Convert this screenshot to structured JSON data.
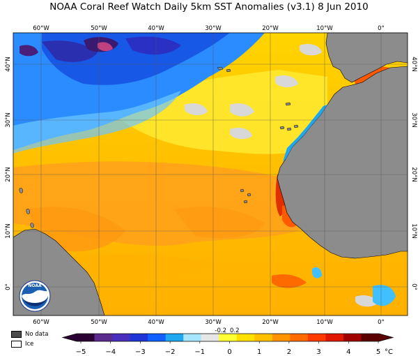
{
  "title": "NOAA Coral Reef Watch Daily 5km SST Anomalies  (v3.1)   8 Jun 2010",
  "map": {
    "lon_labels": [
      "60°W",
      "50°W",
      "40°W",
      "30°W",
      "20°W",
      "10°W",
      "0°"
    ],
    "lat_labels": [
      "40°N",
      "30°N",
      "20°N",
      "10°N",
      "0°"
    ],
    "land_color": "#8c8c8c",
    "nodata_color": "#d8d8d8"
  },
  "logo": {
    "text": "NOAA"
  },
  "legend": {
    "nodata_label": "No data",
    "ice_label": "Ice",
    "nodata_color": "#4d4d4d",
    "ice_color": "#ffffff"
  },
  "colorbar": {
    "unit": "°C",
    "tick_labels": [
      "−5",
      "−4",
      "−3",
      "−2",
      "−1",
      "0",
      "1",
      "2",
      "3",
      "4",
      "5"
    ],
    "small_labels": [
      "-0.2",
      "0.2"
    ],
    "colors": [
      "#2a0033",
      "#5a2a8c",
      "#4a2fbd",
      "#1f35d6",
      "#1060ff",
      "#1fa8f0",
      "#a6e6ff",
      "#e6e6e6",
      "#ffff33",
      "#ffe000",
      "#ffc000",
      "#ff9400",
      "#ff6a00",
      "#ff3a00",
      "#e01800",
      "#a00000",
      "#5a0000"
    ]
  }
}
